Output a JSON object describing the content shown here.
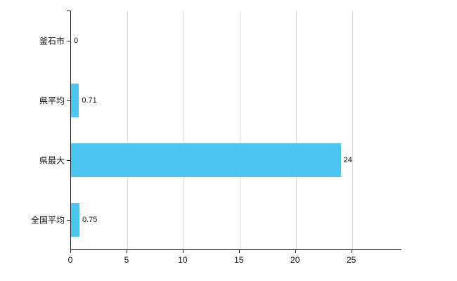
{
  "chart_data": {
    "type": "bar",
    "orientation": "horizontal",
    "title": "",
    "xlabel": "",
    "ylabel": "",
    "categories": [
      "釜石市",
      "県平均",
      "県最大",
      "全国平均"
    ],
    "values": [
      0,
      0.71,
      24,
      0.75
    ],
    "value_labels": [
      "0",
      "0.71",
      "24",
      "0.75"
    ],
    "x_ticks": [
      0,
      5,
      10,
      15,
      20,
      25
    ],
    "xlim": [
      0,
      29.4
    ],
    "grid": true,
    "legend": "none",
    "bar_color": "#4DC5F0",
    "axis_color": "#1a1a1a",
    "grid_color": "#e2e2e2"
  }
}
